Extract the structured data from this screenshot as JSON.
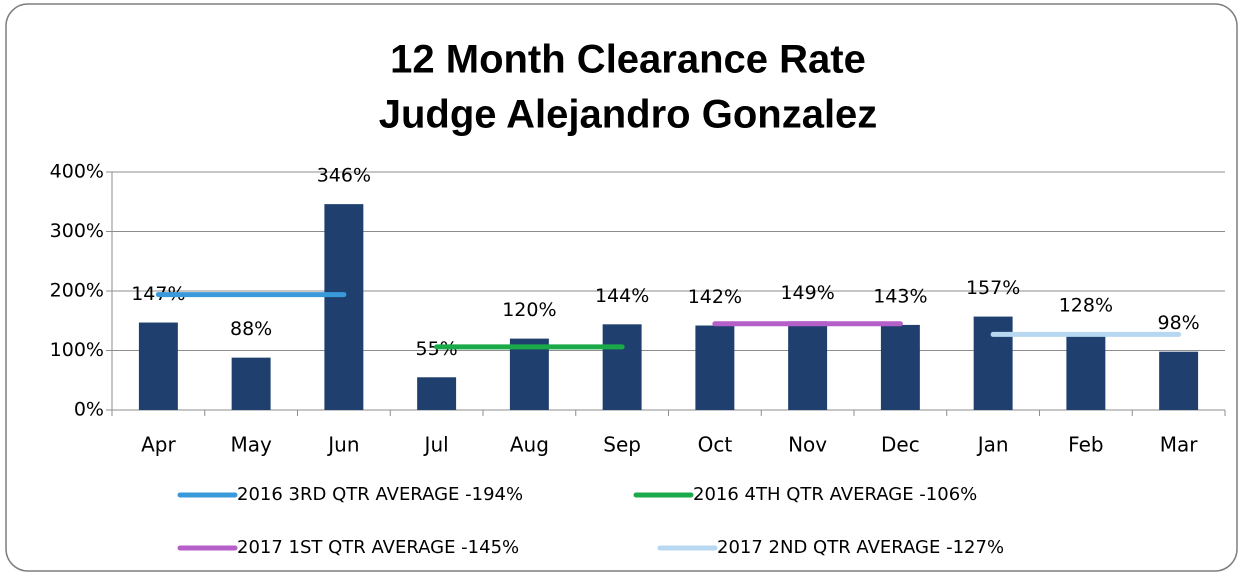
{
  "chart_data": {
    "type": "bar",
    "title": "12 Month Clearance Rate",
    "subtitle": "Judge Alejandro Gonzalez",
    "categories": [
      "Apr",
      "May",
      "Jun",
      "Jul",
      "Aug",
      "Sep",
      "Oct",
      "Nov",
      "Dec",
      "Jan",
      "Feb",
      "Mar"
    ],
    "values": [
      147,
      88,
      346,
      55,
      120,
      144,
      142,
      149,
      143,
      157,
      128,
      98
    ],
    "value_labels": [
      "147%",
      "88%",
      "346%",
      "55%",
      "120%",
      "144%",
      "142%",
      "149%",
      "143%",
      "157%",
      "128%",
      "98%"
    ],
    "color": "#1f3f6e",
    "ylim": [
      0,
      400
    ],
    "yticks": [
      {
        "value": 0,
        "label": "0%"
      },
      {
        "value": 100,
        "label": "100%"
      },
      {
        "value": 200,
        "label": "200%"
      },
      {
        "value": 300,
        "label": "300%"
      },
      {
        "value": 400,
        "label": "400%"
      }
    ],
    "grid": true,
    "legend": "bottom",
    "series": [
      {
        "name": "2016 3RD QTR AVERAGE -194%",
        "color": "#3a9ad9",
        "values": [
          194,
          194,
          194,
          null,
          null,
          null,
          null,
          null,
          null,
          null,
          null,
          null
        ]
      },
      {
        "name": "2016 4TH QTR AVERAGE -106%",
        "color": "#1aaa4a",
        "values": [
          null,
          null,
          null,
          106,
          106,
          106,
          null,
          null,
          null,
          null,
          null,
          null
        ]
      },
      {
        "name": "2017 1ST QTR AVERAGE -145%",
        "color": "#b55fc9",
        "values": [
          null,
          null,
          null,
          null,
          null,
          null,
          145,
          145,
          145,
          null,
          null,
          null
        ]
      },
      {
        "name": "2017 2ND QTR AVERAGE -127%",
        "color": "#b8d8f2",
        "values": [
          null,
          null,
          null,
          null,
          null,
          null,
          null,
          null,
          null,
          127,
          127,
          127
        ]
      }
    ]
  }
}
